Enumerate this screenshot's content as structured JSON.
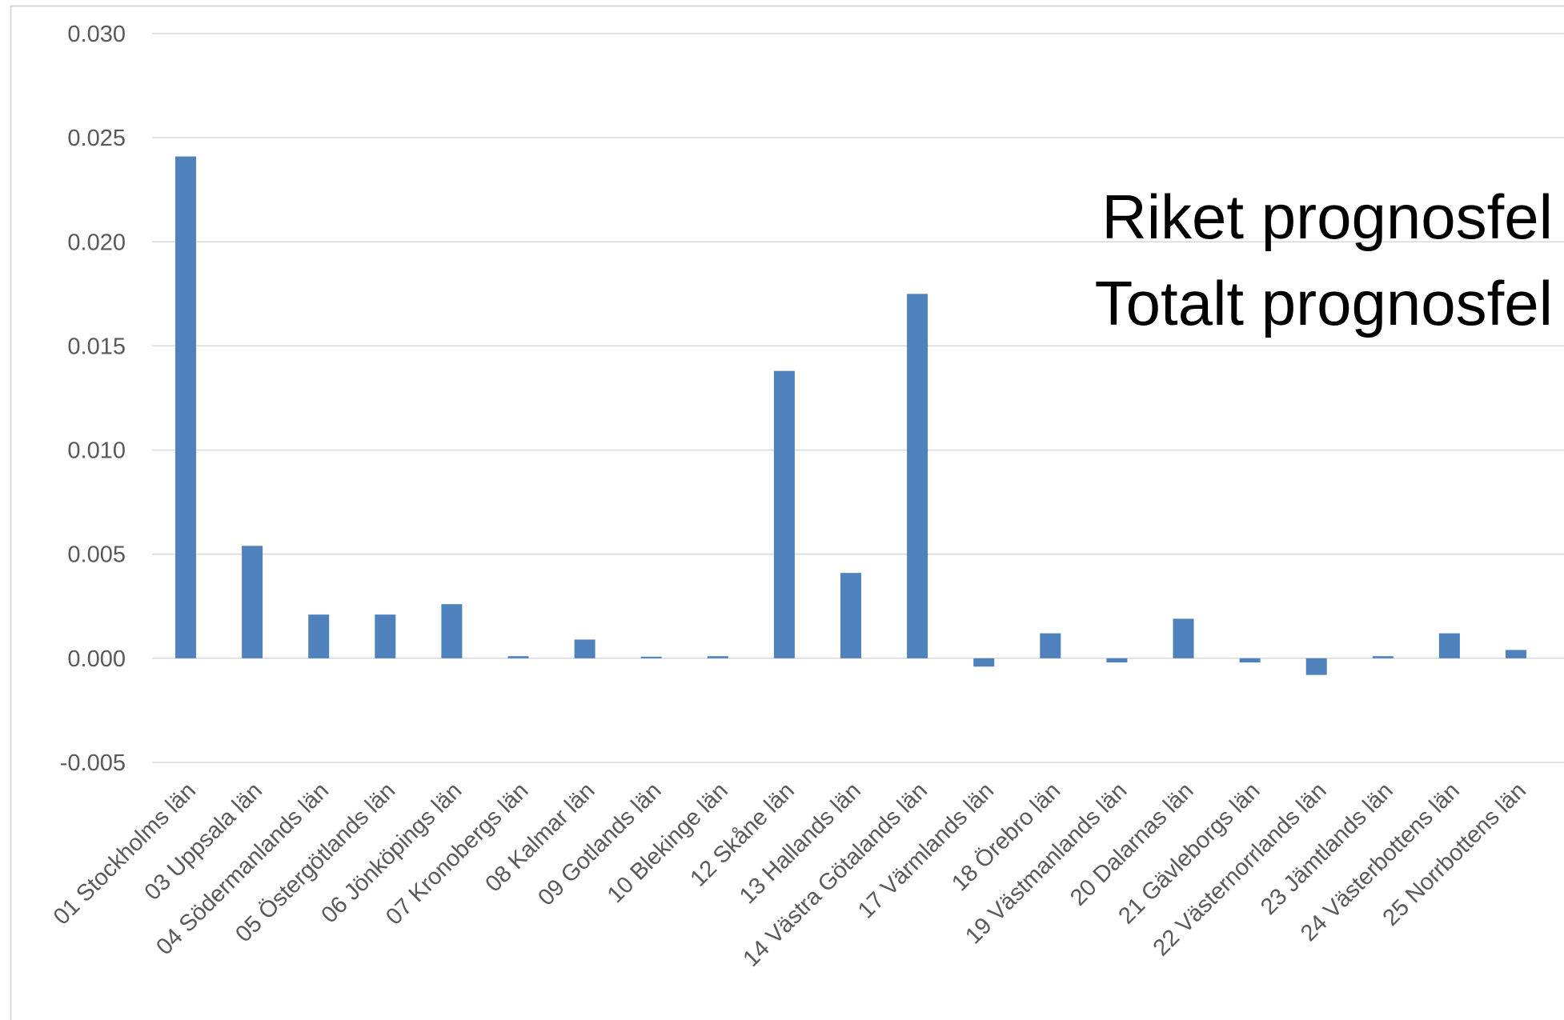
{
  "overlay": {
    "line1": "Riket prognosfel",
    "line2": "Totalt prognosfel"
  },
  "colors": {
    "bar": "#4F81BD",
    "grid": "#D9D9D9",
    "axis_text": "#595959",
    "frame": "#D9D9D9"
  },
  "chart_data": {
    "type": "bar",
    "title": "",
    "xlabel": "",
    "ylabel": "",
    "ylim": [
      -0.005,
      0.03
    ],
    "yticks": [
      -0.005,
      0.0,
      0.005,
      0.01,
      0.015,
      0.02,
      0.025,
      0.03
    ],
    "ytick_labels": [
      "-0.005",
      "0.000",
      "0.005",
      "0.010",
      "0.015",
      "0.020",
      "0.025",
      "0.030"
    ],
    "grid": true,
    "legend": "none",
    "categories": [
      "01 Stockholms län",
      "03 Uppsala län",
      "04 Södermanlands län",
      "05 Östergötlands län",
      "06 Jönköpings län",
      "07 Kronobergs län",
      "08 Kalmar län",
      "09 Gotlands län",
      "10 Blekinge län",
      "12 Skåne län",
      "13 Hallands län",
      "14 Västra Götalands län",
      "17 Värmlands län",
      "18 Örebro län",
      "19 Västmanlands län",
      "20 Dalarnas län",
      "21 Gävleborgs län",
      "22 Västernorrlands län",
      "23 Jämtlands län",
      "24 Västerbottens län",
      "25 Norrbottens län"
    ],
    "values": [
      0.0241,
      0.0054,
      0.0021,
      0.0021,
      0.0026,
      0.0001,
      0.0009,
      0.0,
      0.0001,
      0.0138,
      0.0041,
      0.0175,
      -0.0004,
      0.0012,
      -0.0002,
      0.0019,
      -0.0002,
      -0.0008,
      0.0001,
      0.0012,
      0.0004
    ]
  }
}
